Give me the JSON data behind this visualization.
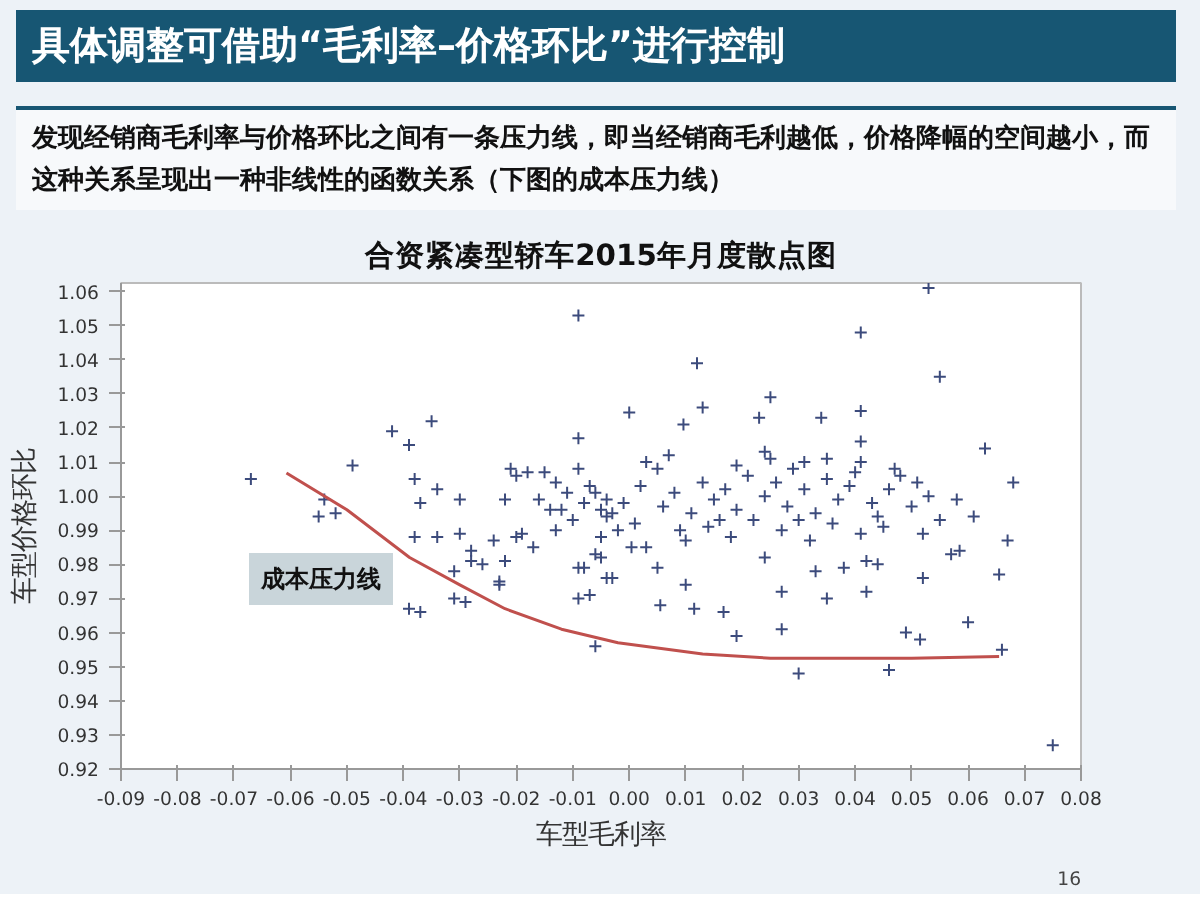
{
  "chart_data": {
    "type": "scatter",
    "title": "具体调整可借助“毛利率–价格环比”进行控制",
    "subtitle": "发现经销商毛利率与价格环比之间有一条压力线，即当经销商毛利越低，价格降幅的空间越小，而这种关系呈现出一种非线性的函数关系（下图的成本压力线）",
    "xlabel": "车型毛利率",
    "ylabel": "车型价格环比",
    "annotations": [
      "合资紧凑型轿车2015年月度散点图",
      "16",
      "成本压力线"
    ],
    "xlim": [
      -0.09,
      0.08
    ],
    "ylim": [
      0.92,
      1.0625
    ],
    "xticks": [
      {
        "value": -0.09,
        "label": "-0.09"
      },
      {
        "value": -0.08,
        "label": "-0.08"
      },
      {
        "value": -0.07,
        "label": "-0.07"
      },
      {
        "value": -0.06,
        "label": "-0.06"
      },
      {
        "value": -0.05,
        "label": "-0.05"
      },
      {
        "value": -0.04,
        "label": "-0.04"
      },
      {
        "value": -0.03,
        "label": "-0.03"
      },
      {
        "value": -0.02,
        "label": "-0.02"
      },
      {
        "value": -0.01,
        "label": "-0.01"
      },
      {
        "value": 0,
        "label": "0.00"
      },
      {
        "value": 0.01,
        "label": "0.01"
      },
      {
        "value": 0.02,
        "label": "0.02"
      },
      {
        "value": 0.03,
        "label": "0.03"
      },
      {
        "value": 0.04,
        "label": "0.04"
      },
      {
        "value": 0.05,
        "label": "0.05"
      },
      {
        "value": 0.06,
        "label": "0.06"
      },
      {
        "value": 0.07,
        "label": "0.07"
      },
      {
        "value": 0.08,
        "label": "0.08"
      }
    ],
    "yticks": [
      {
        "value": 0.92,
        "label": "0.92"
      },
      {
        "value": 0.93,
        "label": "0.93"
      },
      {
        "value": 0.94,
        "label": "0.94"
      },
      {
        "value": 0.95,
        "label": "0.95"
      },
      {
        "value": 0.96,
        "label": "0.96"
      },
      {
        "value": 0.97,
        "label": "0.97"
      },
      {
        "value": 0.98,
        "label": "0.98"
      },
      {
        "value": 0.99,
        "label": "0.99"
      },
      {
        "value": 1.0,
        "label": "1.00"
      },
      {
        "value": 1.01,
        "label": "1.01"
      },
      {
        "value": 1.02,
        "label": "1.02"
      },
      {
        "value": 1.03,
        "label": "1.03"
      },
      {
        "value": 1.04,
        "label": "1.04"
      },
      {
        "value": 1.05,
        "label": "1.05"
      },
      {
        "value": 1.06,
        "label": "1.06"
      }
    ],
    "grid": false,
    "series": [
      {
        "marker": "cross",
        "color": "#3c4b7c",
        "x": [
          -0.067,
          -0.055,
          -0.054,
          -0.052,
          -0.049,
          -0.042,
          -0.039,
          -0.038,
          -0.037,
          -0.035,
          -0.034,
          -0.038,
          -0.034,
          -0.039,
          -0.037,
          -0.03,
          -0.03,
          -0.031,
          -0.031,
          -0.029,
          -0.028,
          -0.028,
          -0.026,
          -0.024,
          -0.023,
          -0.023,
          -0.022,
          -0.022,
          -0.021,
          -0.02,
          -0.02,
          -0.019,
          -0.018,
          -0.017,
          -0.016,
          -0.015,
          -0.014,
          -0.013,
          -0.012,
          -0.009,
          -0.009,
          -0.009,
          -0.008,
          -0.007,
          -0.006,
          -0.008,
          -0.007,
          -0.006,
          -0.005,
          -0.005,
          -0.006,
          -0.004,
          -0.003,
          -0.002,
          -0.003,
          -0.004,
          -0.005,
          0.053,
          0.041,
          0.055,
          0.012,
          0.025,
          0.013,
          0.0,
          0.0096,
          0.023,
          0.034,
          0.041,
          0.041,
          0.024,
          0.063,
          0.041,
          0.068,
          0.058,
          0.035,
          0.031,
          -0.009,
          0.0055,
          0.0115,
          0.0167,
          0.019,
          0.01,
          0.027,
          0.027,
          0.03,
          0.035,
          0.042,
          0.046,
          0.049,
          0.0515,
          0.06,
          0.0655,
          0.066,
          0.075,
          0.052,
          0.033,
          0.038,
          0.042,
          0.044,
          0.057,
          0.0585,
          -0.009,
          -0.004,
          0.0004,
          0.003,
          0.005,
          0.01,
          0.018,
          0.024,
          0.03,
          0.041,
          0.045,
          0.052,
          0.061,
          0.067,
          0.002,
          0.006,
          0.008,
          0.011,
          0.013,
          0.015,
          0.017,
          0.019,
          0.021,
          0.022,
          0.024,
          0.026,
          0.028,
          0.031,
          0.033,
          0.035,
          0.037,
          0.039,
          0.043,
          0.046,
          0.048,
          0.05,
          0.053,
          0.001,
          0.009,
          0.014,
          0.027,
          0.036,
          0.044,
          0.005,
          0.019,
          0.029,
          0.04,
          0.047,
          0.016,
          0.032,
          -0.001,
          -0.01,
          -0.011,
          -0.013,
          0.003,
          0.007,
          0.025,
          0.055,
          0.051
        ],
        "values": [
          1.005,
          0.994,
          0.999,
          0.995,
          1.009,
          1.019,
          1.015,
          1.005,
          0.998,
          1.022,
          1.002,
          0.988,
          0.988,
          0.967,
          0.966,
          0.999,
          0.989,
          0.978,
          0.97,
          0.969,
          0.984,
          0.981,
          0.98,
          0.987,
          0.975,
          0.974,
          0.981,
          0.999,
          1.008,
          1.006,
          0.988,
          0.989,
          1.007,
          0.985,
          0.999,
          1.007,
          0.996,
          1.004,
          0.996,
          1.053,
          1.017,
          1.008,
          0.998,
          1.003,
          1.001,
          0.979,
          0.971,
          0.983,
          0.988,
          0.982,
          0.956,
          0.994,
          0.995,
          0.99,
          0.976,
          0.999,
          0.996,
          1.061,
          1.048,
          1.035,
          1.039,
          1.029,
          1.026,
          1.0245,
          1.021,
          1.023,
          1.023,
          1.025,
          1.016,
          1.013,
          1.014,
          1.01,
          1.004,
          0.999,
          1.011,
          1.01,
          0.97,
          0.968,
          0.967,
          0.966,
          0.959,
          0.974,
          0.972,
          0.961,
          0.948,
          0.97,
          0.972,
          0.949,
          0.96,
          0.958,
          0.963,
          0.977,
          0.955,
          0.927,
          0.976,
          0.978,
          0.979,
          0.981,
          0.98,
          0.983,
          0.984,
          0.979,
          0.976,
          0.985,
          0.985,
          0.979,
          0.987,
          0.988,
          0.982,
          0.993,
          0.989,
          0.991,
          0.989,
          0.994,
          0.987,
          1.003,
          0.997,
          1.001,
          0.995,
          1.004,
          0.999,
          1.002,
          0.996,
          1.006,
          0.993,
          1.0,
          1.004,
          0.997,
          1.002,
          0.995,
          1.005,
          0.999,
          1.003,
          0.998,
          1.002,
          1.006,
          0.997,
          1.0,
          0.992,
          0.99,
          0.991,
          0.99,
          0.992,
          0.994,
          1.008,
          1.009,
          1.008,
          1.007,
          1.008,
          0.993,
          0.987,
          0.998,
          0.993,
          1.001,
          0.99,
          1.01,
          1.012,
          1.011,
          0.993,
          1.004
        ]
      },
      {
        "type": "line",
        "marker": "none",
        "color": "#c0504d",
        "line_style": "solid",
        "x": [
          -0.0607,
          -0.05,
          -0.0389,
          -0.03,
          -0.022,
          -0.012,
          -0.002,
          0.013,
          0.025,
          0.037,
          0.05,
          0.0655
        ],
        "values": [
          1.0068,
          0.996,
          0.982,
          0.974,
          0.967,
          0.961,
          0.957,
          0.9537,
          0.9525,
          0.9525,
          0.9525,
          0.953
        ]
      }
    ]
  }
}
